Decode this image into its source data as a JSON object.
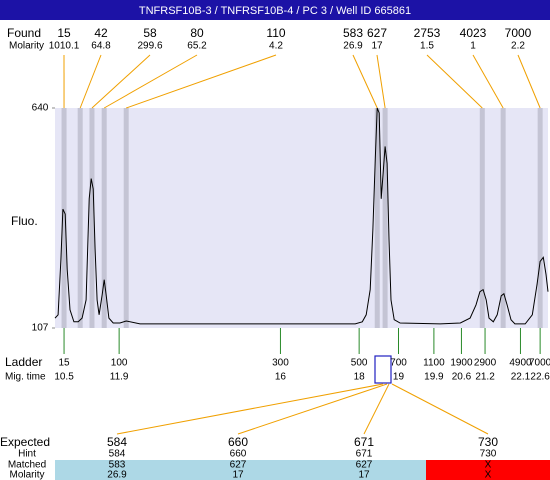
{
  "chart_data": {
    "type": "line",
    "title": "TNFRSF10B-3 / TNFRSF10B-4 / PC 3 / Well ID 665861",
    "y_label": "Fluo.",
    "color": "#000000",
    "background": "#e6e6f6",
    "xlim": [
      10.27,
      22.8
    ],
    "ylim": [
      107,
      640
    ],
    "yticks": [
      107,
      640
    ],
    "x": [
      10.27,
      10.35,
      10.42,
      10.47,
      10.53,
      10.58,
      10.65,
      10.75,
      10.86,
      10.96,
      11.06,
      11.14,
      11.19,
      11.24,
      11.29,
      11.34,
      11.39,
      11.47,
      11.52,
      11.57,
      11.64,
      11.75,
      11.92,
      12.08,
      12.43,
      13.96,
      16.5,
      17.9,
      18.08,
      18.18,
      18.28,
      18.35,
      18.41,
      18.46,
      18.51,
      18.56,
      18.61,
      18.66,
      18.71,
      18.76,
      18.81,
      18.89,
      19.04,
      20.06,
      20.57,
      20.82,
      20.97,
      21.07,
      21.15,
      21.23,
      21.3,
      21.41,
      21.51,
      21.61,
      21.68,
      21.76,
      21.86,
      21.96,
      22.22,
      22.4,
      22.52,
      22.6,
      22.68,
      22.75,
      22.8
    ],
    "values": [
      131,
      139,
      273,
      395,
      383,
      249,
      151,
      122,
      122,
      131,
      175,
      420,
      469,
      444,
      298,
      175,
      139,
      188,
      224,
      188,
      131,
      119,
      119,
      124,
      117,
      117,
      117,
      117,
      122,
      139,
      200,
      347,
      518,
      640,
      628,
      420,
      481,
      547,
      506,
      322,
      175,
      127,
      119,
      117,
      119,
      131,
      163,
      195,
      200,
      175,
      131,
      122,
      139,
      185,
      190,
      163,
      127,
      117,
      117,
      139,
      212,
      268,
      278,
      237,
      195
    ],
    "found": {
      "label": "Found",
      "molarity_label": "Molarity",
      "sizes": [
        15,
        42,
        58,
        80,
        110,
        583,
        627,
        2753,
        4023,
        7000
      ],
      "molarity": [
        1010.1,
        64.8,
        299.6,
        65.2,
        4.2,
        26.9,
        17,
        1.5,
        1,
        2.2
      ],
      "times": [
        10.5,
        10.91,
        11.21,
        11.52,
        12.08,
        18.46,
        18.66,
        21.13,
        21.66,
        22.6
      ]
    },
    "ladder": {
      "label": "Ladder",
      "time_label": "Mig. time",
      "sizes": [
        15,
        100,
        300,
        500,
        700,
        1100,
        1900,
        2900,
        4900,
        7000
      ],
      "times": [
        10.5,
        11.9,
        16,
        18,
        19,
        19.9,
        20.6,
        21.2,
        22.1,
        22.6
      ]
    },
    "expected": {
      "label": "Expected",
      "hint_label": "Hint",
      "matched_label": "Matched",
      "molarity_label": "Molarity",
      "expected": [
        584,
        660,
        671,
        730
      ],
      "hint": [
        584,
        660,
        671,
        730
      ],
      "matched": [
        583,
        627,
        627,
        "X"
      ],
      "molarity": [
        26.9,
        17,
        17,
        "X"
      ],
      "match_colors": [
        "#add8e6",
        "#add8e6",
        "#add8e6",
        "#ff0000"
      ]
    }
  }
}
